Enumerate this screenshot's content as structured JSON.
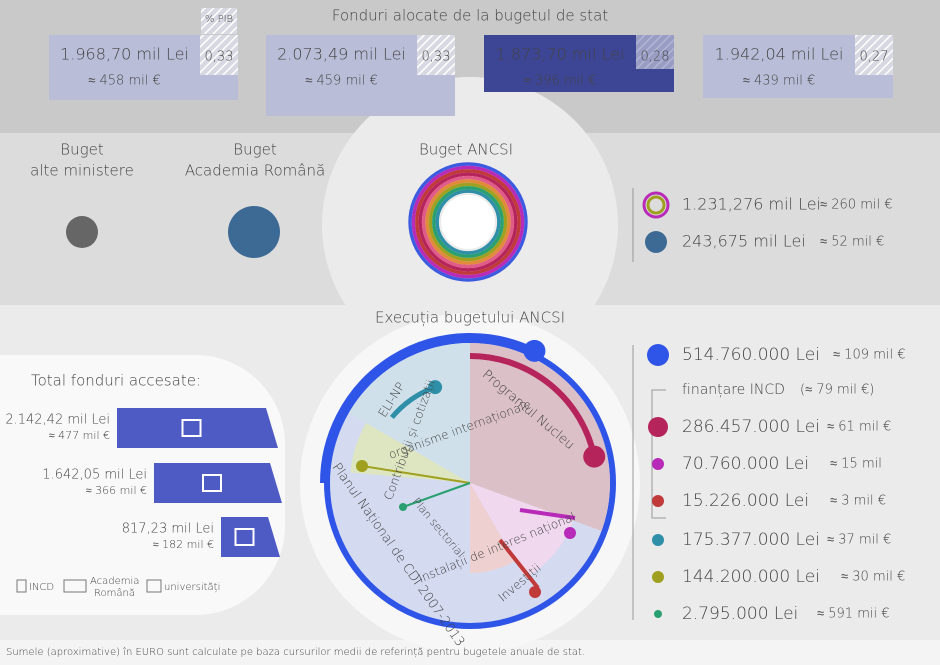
{
  "header": {
    "title": "Fonduri alocate de la bugetul de stat",
    "pib_label": "% PIB",
    "cards": [
      {
        "lei": "1.968,70 mil Lei",
        "eur": "≈ 458 mil €",
        "pib": "0,33"
      },
      {
        "lei": "2.073,49 mil Lei",
        "eur": "≈ 459 mil €",
        "pib": "0,33"
      },
      {
        "lei": "1.873,70 mil Lei",
        "eur": "≈ 396 mil €",
        "pib": "0,28"
      },
      {
        "lei": "1.942,04 mil Lei",
        "eur": "≈ 439 mil €",
        "pib": "0,27"
      }
    ]
  },
  "budgets": {
    "groups": [
      [
        "Buget",
        "alte ministere"
      ],
      [
        "Buget",
        "Academia Română"
      ],
      [
        "Buget ANCSI"
      ]
    ],
    "legend": [
      {
        "lei": "1.231,276 mil Lei",
        "eur": "≈ 260 mil €"
      },
      {
        "lei": "243,675 mil Lei",
        "eur": "≈ 52 mil €"
      }
    ]
  },
  "execution": {
    "title": "Execuția bugetului ANCSI",
    "segments": [
      "ELI-NP",
      "Contribuții și cotizații",
      "organisme internaționale",
      "Programul Nucleu",
      "Planul Național de CDI 2007-2013",
      "Plan sectorial",
      "Instalații de interes național",
      "Investiții"
    ],
    "group": {
      "label": "finanțare INCD",
      "eur": "(≈ 79 mil €)"
    },
    "legend": [
      {
        "lei": "514.760.000 Lei",
        "eur": "≈ 109 mil €",
        "color": "#2f55e8"
      },
      {
        "lei": "286.457.000 Lei",
        "eur": "≈ 61 mil €",
        "color": "#b5245a"
      },
      {
        "lei": "70.760.000 Lei",
        "eur": "≈ 15 mil",
        "color": "#b82ab8"
      },
      {
        "lei": "15.226.000 Lei",
        "eur": "≈ 3 mil €",
        "color": "#c03a3a"
      },
      {
        "lei": "175.377.000 Lei",
        "eur": "≈ 37 mil €",
        "color": "#2f8fa8"
      },
      {
        "lei": "144.200.000 Lei",
        "eur": "≈ 30 mil €",
        "color": "#a0a020"
      },
      {
        "lei": "2.795.000 Lei",
        "eur": "≈ 591 mii €",
        "color": "#2aa070"
      }
    ]
  },
  "accessed": {
    "title": "Total fonduri accesate:",
    "rows": [
      {
        "lei": "2.142,42 mil Lei",
        "eur": "≈ 477 mil €"
      },
      {
        "lei": "1.642,05 mil Lei",
        "eur": "≈ 366 mil €"
      },
      {
        "lei": "817,23 mil Lei",
        "eur": "≈ 182 mil €"
      }
    ],
    "legend": [
      [
        "INCD"
      ],
      [
        "Academia",
        "Română"
      ],
      [
        "universități"
      ]
    ]
  },
  "note": "Sumele (aproximative) în EURO sunt calculate pe baza cursurilor medii de referință pentru bugetele anuale de stat."
}
